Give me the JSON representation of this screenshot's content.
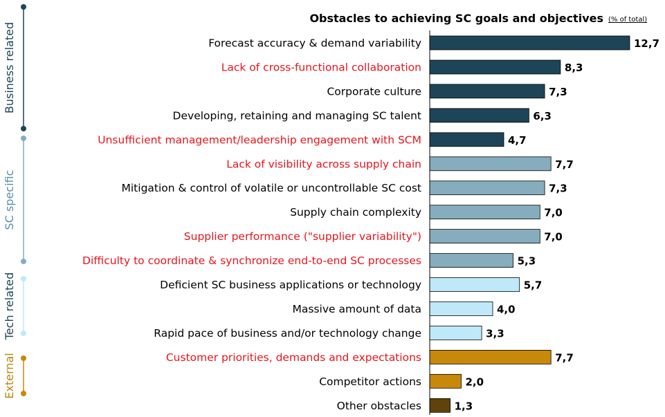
{
  "chart_data": {
    "type": "bar",
    "orientation": "horizontal",
    "title": "Obstacles to achieving SC goals and objectives",
    "title_unit": "(% of total)",
    "xlim": [
      0,
      12.7
    ],
    "categories": [
      "Forecast accuracy & demand variability",
      "Lack of cross-functional collaboration",
      "Corporate culture",
      "Developing, retaining and managing SC talent",
      "Unsufficient management/leadership engagement with SCM",
      "Lack of visibility across supply chain",
      "Mitigation & control of volatile or uncontrollable SC cost",
      "Supply chain complexity",
      "Supplier performance (\"supplier variability\")",
      "Difficulty to coordinate & synchronize end-to-end SC processes",
      "Deficient SC business applications or technology",
      "Massive amount of data",
      "Rapid pace of business and/or technology change",
      "Customer priorities, demands and expectations",
      "Competitor actions",
      "Other obstacles"
    ],
    "values": [
      12.7,
      8.3,
      7.3,
      6.3,
      4.7,
      7.7,
      7.3,
      7.0,
      7.0,
      5.3,
      5.7,
      4.0,
      3.3,
      7.7,
      2.0,
      1.3
    ],
    "value_labels": [
      "12,7",
      "8,3",
      "7,3",
      "6,3",
      "4,7",
      "7,7",
      "7,3",
      "7,0",
      "7,0",
      "5,3",
      "5,7",
      "4,0",
      "3,3",
      "7,7",
      "2,0",
      "1,3"
    ],
    "highlighted": [
      false,
      true,
      false,
      false,
      true,
      true,
      false,
      false,
      true,
      true,
      false,
      false,
      false,
      true,
      false,
      false
    ],
    "groups": [
      {
        "label": "Business related",
        "first": 0,
        "last": 4
      },
      {
        "label": "SC specific",
        "first": 5,
        "last": 9
      },
      {
        "label": "Tech related",
        "first": 10,
        "last": 12
      },
      {
        "label": "External",
        "first": 13,
        "last": 15
      }
    ],
    "bar_colors": [
      "#1e4457",
      "#1e4457",
      "#1e4457",
      "#1e4457",
      "#1e4457",
      "#86adbd",
      "#86adbd",
      "#86adbd",
      "#86adbd",
      "#86adbd",
      "#bfe9f8",
      "#bfe9f8",
      "#bfe9f8",
      "#c8880a",
      "#c8880a",
      "#60430b"
    ],
    "group_colors": [
      "#1e4457",
      "#86adbd",
      "#bfe9f8",
      "#c8880a"
    ],
    "group_label_colors": [
      "#1e4457",
      "#5b8fa5",
      "#1e4457",
      "#b8860b"
    ],
    "highlight_color": "#e8141c",
    "label_color": "#000000",
    "axis_color": "#000000"
  }
}
